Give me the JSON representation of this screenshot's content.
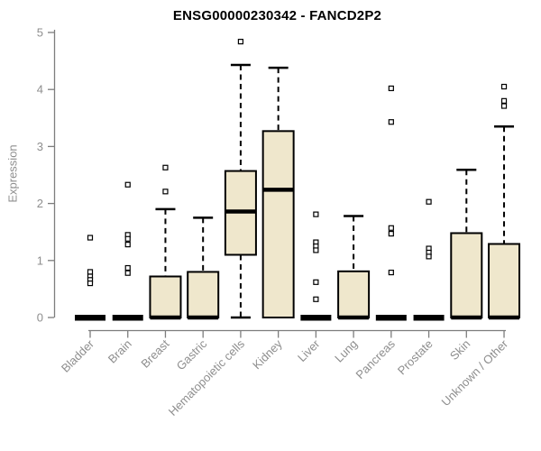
{
  "chart_data": {
    "type": "boxplot",
    "title": "ENSG00000230342 - FANCD2P2",
    "ylabel": "Expression",
    "xlabel": "",
    "ylim": [
      0,
      5
    ],
    "yticks": [
      0,
      1,
      2,
      3,
      4,
      5
    ],
    "grid": false,
    "legend": "none",
    "categories": [
      "Bladder",
      "Brain",
      "Breast",
      "Gastric",
      "Hematopoietic cells",
      "Kidney",
      "Liver",
      "Lung",
      "Pancreas",
      "Prostate",
      "Skin",
      "Unknown / Other"
    ],
    "series": [
      {
        "name": "Bladder",
        "q1": 0,
        "median": 0,
        "q3": 0,
        "whisker_low": 0,
        "whisker_high": 0,
        "outliers": [
          1.4,
          0.8,
          0.72,
          0.66,
          0.6
        ]
      },
      {
        "name": "Brain",
        "q1": 0,
        "median": 0,
        "q3": 0,
        "whisker_low": 0,
        "whisker_high": 0,
        "outliers": [
          2.33,
          1.45,
          1.38,
          1.28,
          0.87,
          0.78
        ]
      },
      {
        "name": "Breast",
        "q1": 0,
        "median": 0,
        "q3": 0.72,
        "whisker_low": 0,
        "whisker_high": 1.9,
        "outliers": [
          2.63,
          2.21
        ]
      },
      {
        "name": "Gastric",
        "q1": 0,
        "median": 0,
        "q3": 0.8,
        "whisker_low": 0,
        "whisker_high": 1.75,
        "outliers": []
      },
      {
        "name": "Hematopoietic cells",
        "q1": 1.1,
        "median": 1.86,
        "q3": 2.57,
        "whisker_low": 0,
        "whisker_high": 4.43,
        "outliers": [
          4.84
        ]
      },
      {
        "name": "Kidney",
        "q1": 0,
        "median": 2.24,
        "q3": 3.27,
        "whisker_low": 0,
        "whisker_high": 4.38,
        "outliers": []
      },
      {
        "name": "Liver",
        "q1": 0,
        "median": 0,
        "q3": 0,
        "whisker_low": 0,
        "whisker_high": 0,
        "outliers": [
          1.81,
          1.32,
          1.25,
          1.18,
          0.62,
          0.32
        ]
      },
      {
        "name": "Lung",
        "q1": 0,
        "median": 0,
        "q3": 0.81,
        "whisker_low": 0,
        "whisker_high": 1.78,
        "outliers": []
      },
      {
        "name": "Pancreas",
        "q1": 0,
        "median": 0,
        "q3": 0,
        "whisker_low": 0,
        "whisker_high": 0,
        "outliers": [
          4.02,
          3.43,
          1.57,
          1.47,
          0.79
        ]
      },
      {
        "name": "Prostate",
        "q1": 0,
        "median": 0,
        "q3": 0,
        "whisker_low": 0,
        "whisker_high": 0,
        "outliers": [
          2.03,
          1.21,
          1.14,
          1.07
        ]
      },
      {
        "name": "Skin",
        "q1": 0,
        "median": 0,
        "q3": 1.48,
        "whisker_low": 0,
        "whisker_high": 2.59,
        "outliers": []
      },
      {
        "name": "Unknown / Other",
        "q1": 0,
        "median": 0,
        "q3": 1.29,
        "whisker_low": 0,
        "whisker_high": 3.35,
        "outliers": [
          4.05,
          3.8,
          3.71
        ]
      }
    ],
    "colors": {
      "box_fill": "#EFE7CC",
      "box_border": "#000000",
      "median": "#000000",
      "whisker": "#000000",
      "outlier_stroke": "#000000",
      "outlier_fill": "#ffffff",
      "axis_line": "#7d7d7d",
      "tick_label": "#8e8e8e",
      "title": "#000000",
      "background": "#ffffff"
    }
  }
}
